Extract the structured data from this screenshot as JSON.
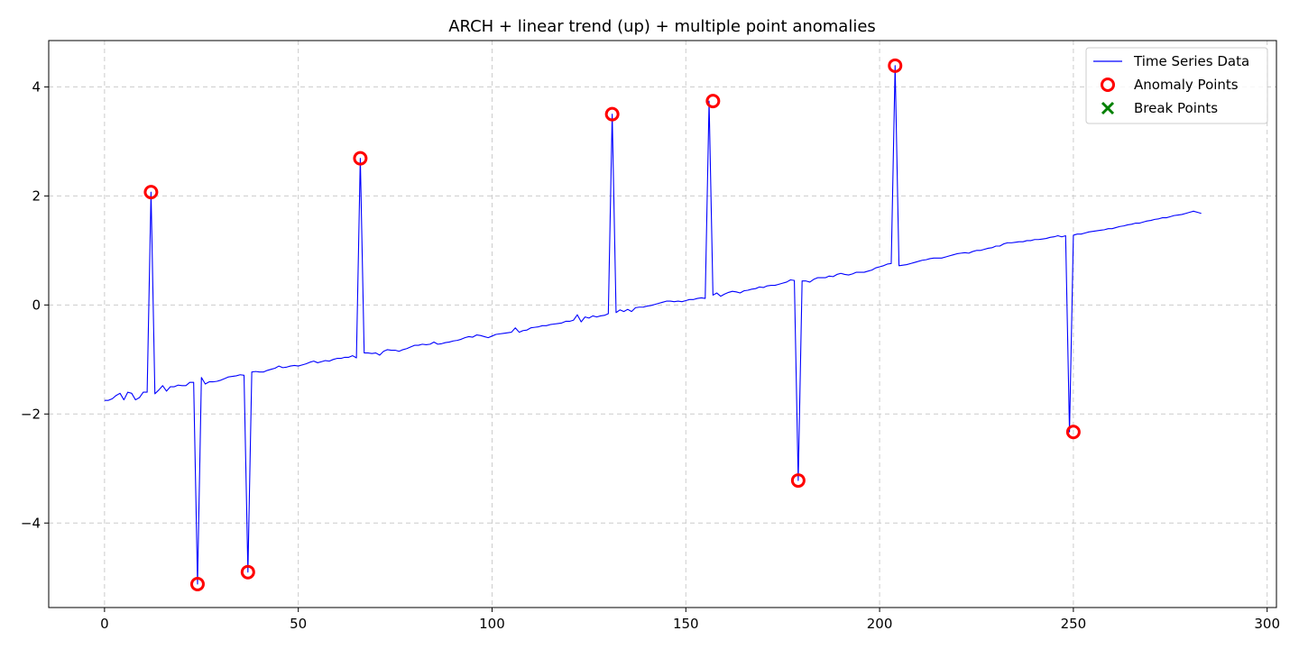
{
  "chart_data": {
    "type": "line",
    "title": "ARCH + linear trend (up) + multiple point anomalies",
    "xlabel": "",
    "ylabel": "",
    "xlim": [
      -14.4,
      302.4
    ],
    "ylim": [
      -5.55,
      4.85
    ],
    "x_ticks": [
      0,
      50,
      100,
      150,
      200,
      250,
      300
    ],
    "y_ticks": [
      -4,
      -2,
      0,
      2,
      4
    ],
    "x_tick_labels": [
      "0",
      "50",
      "100",
      "150",
      "200",
      "250",
      "300"
    ],
    "y_tick_labels": [
      "−4",
      "−2",
      "0",
      "2",
      "4"
    ],
    "grid": true,
    "legend_position": "top-right",
    "legend": [
      {
        "label": "Time Series Data",
        "kind": "line",
        "color": "#0000ff"
      },
      {
        "label": "Anomaly Points",
        "kind": "circle",
        "color": "#ff0000"
      },
      {
        "label": "Break Points",
        "kind": "x",
        "color": "#008000"
      }
    ],
    "series": [
      {
        "name": "Time Series Data",
        "color": "#0000ff",
        "x_start": 0,
        "values": [
          -1.75,
          -1.75,
          -1.72,
          -1.66,
          -1.62,
          -1.74,
          -1.6,
          -1.62,
          -1.74,
          -1.7,
          -1.6,
          -1.6,
          2.07,
          -1.63,
          -1.56,
          -1.48,
          -1.58,
          -1.5,
          -1.5,
          -1.47,
          -1.48,
          -1.48,
          -1.42,
          -1.42,
          -5.12,
          -1.33,
          -1.45,
          -1.41,
          -1.41,
          -1.4,
          -1.38,
          -1.35,
          -1.32,
          -1.31,
          -1.3,
          -1.28,
          -1.29,
          -4.9,
          -1.23,
          -1.22,
          -1.23,
          -1.23,
          -1.2,
          -1.18,
          -1.16,
          -1.12,
          -1.15,
          -1.14,
          -1.12,
          -1.11,
          -1.12,
          -1.1,
          -1.08,
          -1.05,
          -1.03,
          -1.06,
          -1.04,
          -1.02,
          -1.03,
          -1.0,
          -0.98,
          -0.98,
          -0.96,
          -0.96,
          -0.93,
          -0.97,
          2.69,
          -0.88,
          -0.88,
          -0.89,
          -0.88,
          -0.92,
          -0.85,
          -0.82,
          -0.83,
          -0.83,
          -0.85,
          -0.82,
          -0.8,
          -0.77,
          -0.74,
          -0.74,
          -0.72,
          -0.73,
          -0.72,
          -0.68,
          -0.72,
          -0.71,
          -0.69,
          -0.68,
          -0.66,
          -0.65,
          -0.63,
          -0.6,
          -0.58,
          -0.59,
          -0.55,
          -0.56,
          -0.58,
          -0.6,
          -0.57,
          -0.54,
          -0.53,
          -0.52,
          -0.51,
          -0.5,
          -0.42,
          -0.5,
          -0.47,
          -0.46,
          -0.42,
          -0.41,
          -0.4,
          -0.38,
          -0.38,
          -0.36,
          -0.35,
          -0.34,
          -0.33,
          -0.3,
          -0.3,
          -0.28,
          -0.18,
          -0.31,
          -0.22,
          -0.24,
          -0.2,
          -0.22,
          -0.2,
          -0.19,
          -0.16,
          3.5,
          -0.14,
          -0.09,
          -0.12,
          -0.08,
          -0.12,
          -0.05,
          -0.04,
          -0.04,
          -0.02,
          -0.01,
          0.01,
          0.03,
          0.05,
          0.07,
          0.07,
          0.06,
          0.07,
          0.06,
          0.08,
          0.1,
          0.1,
          0.12,
          0.13,
          0.12,
          3.74,
          0.18,
          0.22,
          0.16,
          0.2,
          0.23,
          0.25,
          0.24,
          0.22,
          0.26,
          0.27,
          0.29,
          0.3,
          0.33,
          0.32,
          0.35,
          0.36,
          0.36,
          0.38,
          0.4,
          0.42,
          0.46,
          0.45,
          -3.22,
          0.44,
          0.44,
          0.42,
          0.47,
          0.5,
          0.5,
          0.5,
          0.53,
          0.52,
          0.56,
          0.58,
          0.56,
          0.55,
          0.57,
          0.6,
          0.6,
          0.6,
          0.62,
          0.64,
          0.68,
          0.7,
          0.72,
          0.75,
          0.76,
          4.39,
          0.72,
          0.73,
          0.74,
          0.76,
          0.78,
          0.8,
          0.82,
          0.83,
          0.85,
          0.86,
          0.86,
          0.86,
          0.88,
          0.9,
          0.92,
          0.94,
          0.95,
          0.96,
          0.95,
          0.98,
          1.0,
          1.0,
          1.02,
          1.04,
          1.05,
          1.08,
          1.08,
          1.12,
          1.14,
          1.14,
          1.15,
          1.16,
          1.16,
          1.18,
          1.18,
          1.2,
          1.2,
          1.21,
          1.22,
          1.24,
          1.25,
          1.27,
          1.25,
          1.27,
          -2.33,
          1.28,
          1.3,
          1.3,
          1.32,
          1.34,
          1.35,
          1.36,
          1.37,
          1.38,
          1.4,
          1.4,
          1.42,
          1.44,
          1.45,
          1.47,
          1.48,
          1.5,
          1.5,
          1.52,
          1.54,
          1.55,
          1.57,
          1.58,
          1.6,
          1.6,
          1.62,
          1.64,
          1.65,
          1.66,
          1.68,
          1.7,
          1.72,
          1.7,
          1.68
        ]
      }
    ],
    "anomaly_points": [
      {
        "x": 12,
        "y": 2.07
      },
      {
        "x": 24,
        "y": -5.12
      },
      {
        "x": 37,
        "y": -4.9
      },
      {
        "x": 66,
        "y": 2.69
      },
      {
        "x": 131,
        "y": 3.5
      },
      {
        "x": 157,
        "y": 3.74
      },
      {
        "x": 179,
        "y": -3.22
      },
      {
        "x": 204,
        "y": 4.39
      },
      {
        "x": 250,
        "y": -2.33
      }
    ],
    "break_points": []
  }
}
